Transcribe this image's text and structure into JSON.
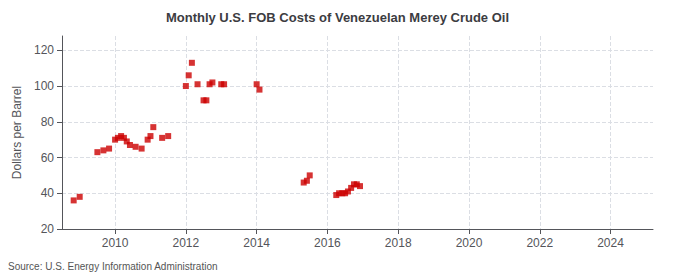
{
  "chart_data": {
    "type": "scatter",
    "title": "Monthly U.S. FOB Costs of Venezuelan Merey Crude Oil",
    "y_label": "Dollars per Barrel",
    "annotation": "Source: U.S. Energy Information Administration",
    "color": "#cc0000",
    "marker": "square",
    "grid": true,
    "xlim": [
      2008.5,
      2025.2
    ],
    "ylim": [
      20,
      128
    ],
    "xticks": [
      2010,
      2012,
      2014,
      2016,
      2018,
      2020,
      2022,
      2024
    ],
    "yticks": [
      20,
      40,
      60,
      80,
      100,
      120
    ],
    "x": [
      2008.83,
      2009.0,
      2009.5,
      2009.67,
      2009.83,
      2010.0,
      2010.08,
      2010.17,
      2010.25,
      2010.33,
      2010.42,
      2010.58,
      2010.75,
      2010.92,
      2011.0,
      2011.08,
      2011.33,
      2011.5,
      2012.0,
      2012.08,
      2012.17,
      2012.33,
      2012.5,
      2012.58,
      2012.67,
      2012.75,
      2013.0,
      2013.08,
      2014.0,
      2014.08,
      2015.33,
      2015.42,
      2015.5,
      2016.25,
      2016.33,
      2016.42,
      2016.5,
      2016.58,
      2016.67,
      2016.75,
      2016.83,
      2016.92
    ],
    "values": [
      36,
      38,
      63,
      64,
      65,
      70,
      71,
      72,
      71,
      69,
      67,
      66,
      65,
      70,
      72,
      77,
      71,
      72,
      100,
      106,
      113,
      101,
      92,
      92,
      101,
      102,
      101,
      101,
      101,
      98,
      46,
      47,
      50,
      39,
      40,
      40,
      40,
      41,
      43,
      45,
      45,
      44
    ]
  }
}
